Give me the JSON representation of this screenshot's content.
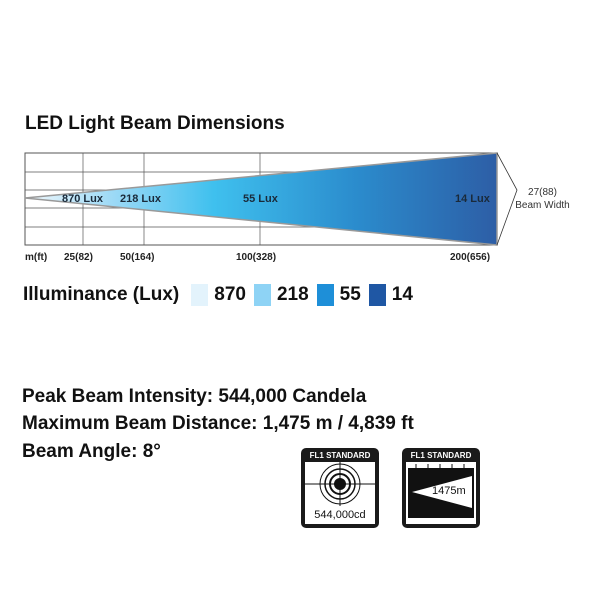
{
  "title": "LED Light Beam Dimensions",
  "beam": {
    "zone_labels": [
      "870 Lux",
      "218 Lux",
      "55 Lux",
      "14 Lux"
    ],
    "axis_unit": "m(ft)",
    "axis_ticks": [
      "25(82)",
      "50(164)",
      "100(328)",
      "200(656)"
    ],
    "beam_width_value": "27(88)",
    "beam_width_label": "Beam Width"
  },
  "legend": {
    "label": "Illuminance (Lux)",
    "items": [
      {
        "value": "870",
        "color": "#e3f3fc"
      },
      {
        "value": "218",
        "color": "#8ed3f5"
      },
      {
        "value": "55",
        "color": "#1e8fd8"
      },
      {
        "value": "14",
        "color": "#1f57a4"
      }
    ]
  },
  "specs": {
    "peak_intensity": "Peak Beam Intensity: 544,000 Candela",
    "max_distance": "Maximum Beam Distance: 1,475 m / 4,839 ft",
    "beam_angle": "Beam Angle: 8°"
  },
  "badges": [
    {
      "header": "FL1 STANDARD",
      "value": "544,000cd",
      "icon": "target-icon"
    },
    {
      "header": "FL1 STANDARD",
      "value": "1475m",
      "icon": "beam-distance-icon"
    }
  ]
}
